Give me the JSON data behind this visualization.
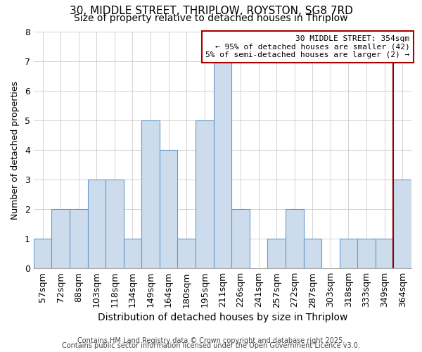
{
  "title1": "30, MIDDLE STREET, THRIPLOW, ROYSTON, SG8 7RD",
  "title2": "Size of property relative to detached houses in Thriplow",
  "xlabel": "Distribution of detached houses by size in Thriplow",
  "ylabel": "Number of detached properties",
  "categories": [
    "57sqm",
    "72sqm",
    "88sqm",
    "103sqm",
    "118sqm",
    "134sqm",
    "149sqm",
    "164sqm",
    "180sqm",
    "195sqm",
    "211sqm",
    "226sqm",
    "241sqm",
    "257sqm",
    "272sqm",
    "287sqm",
    "303sqm",
    "318sqm",
    "333sqm",
    "349sqm",
    "364sqm"
  ],
  "values": [
    1,
    2,
    2,
    3,
    3,
    1,
    5,
    4,
    1,
    5,
    7,
    2,
    0,
    1,
    2,
    1,
    0,
    1,
    1,
    1,
    3
  ],
  "bar_color": "#ccdcec",
  "bar_edge_color": "#6699cc",
  "ylim_max": 8,
  "yticks": [
    0,
    1,
    2,
    3,
    4,
    5,
    6,
    7,
    8
  ],
  "property_line_color": "#8b0000",
  "annotation_text": "30 MIDDLE STREET: 354sqm\n← 95% of detached houses are smaller (42)\n5% of semi-detached houses are larger (2) →",
  "annotation_box_color": "#aa0000",
  "footnote1": "Contains HM Land Registry data © Crown copyright and database right 2025.",
  "footnote2": "Contains public sector information licensed under the Open Government Licence v3.0.",
  "title1_fontsize": 11,
  "title2_fontsize": 10,
  "xlabel_fontsize": 10,
  "ylabel_fontsize": 9,
  "tick_fontsize": 9,
  "annot_fontsize": 8,
  "footnote_fontsize": 7
}
